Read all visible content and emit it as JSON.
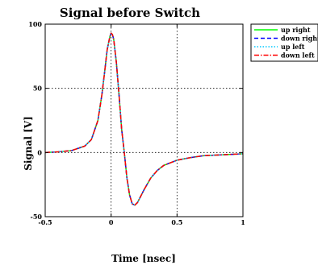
{
  "chart_data": {
    "type": "line",
    "title": "Signal before Switch",
    "xlabel": "Time [nsec]",
    "ylabel": "Signal [V]",
    "xlim": [
      -0.5,
      1
    ],
    "ylim": [
      -50,
      100
    ],
    "xticks": [
      -0.5,
      0,
      0.5,
      1
    ],
    "xtick_labels": [
      "-0.5",
      "0",
      "0.5",
      "1"
    ],
    "yticks": [
      -50,
      0,
      50,
      100
    ],
    "ytick_labels": [
      "-50",
      "0",
      "50",
      "100"
    ],
    "grid": true,
    "legend_position": "outside-top-right",
    "x": [
      -0.5,
      -0.4,
      -0.3,
      -0.2,
      -0.15,
      -0.1,
      -0.07,
      -0.05,
      -0.03,
      -0.01,
      0.0,
      0.01,
      0.02,
      0.04,
      0.06,
      0.08,
      0.1,
      0.12,
      0.14,
      0.16,
      0.18,
      0.2,
      0.22,
      0.25,
      0.3,
      0.35,
      0.4,
      0.5,
      0.6,
      0.7,
      0.8,
      0.9,
      1.0
    ],
    "series": [
      {
        "name": "up right",
        "color": "#00ff00",
        "dash": "solid",
        "values": [
          0,
          0.5,
          1.5,
          5,
          10,
          25,
          45,
          62,
          80,
          90,
          93,
          92,
          88,
          70,
          45,
          18,
          0,
          -20,
          -33,
          -40,
          -41,
          -39,
          -35,
          -29,
          -20,
          -14,
          -10,
          -6,
          -4,
          -2.5,
          -2,
          -1.5,
          -1
        ]
      },
      {
        "name": "down right",
        "color": "#0000ff",
        "dash": "dashed",
        "values": [
          0,
          0.5,
          1.5,
          5,
          10,
          25,
          45,
          62,
          80,
          90,
          93,
          92,
          88,
          70,
          45,
          18,
          0,
          -20,
          -33,
          -40,
          -41,
          -39,
          -35,
          -29,
          -20,
          -14,
          -10,
          -6,
          -4,
          -2.5,
          -2,
          -1.5,
          -1
        ]
      },
      {
        "name": "up left",
        "color": "#00c8ff",
        "dash": "dotted",
        "values": [
          0,
          0.5,
          1.5,
          5,
          10,
          25,
          45,
          62,
          80,
          90,
          93,
          92,
          88,
          70,
          45,
          18,
          0,
          -20,
          -33,
          -40,
          -41,
          -39,
          -35,
          -29,
          -20,
          -14,
          -10,
          -6,
          -4,
          -2.5,
          -2,
          -1.5,
          -1
        ]
      },
      {
        "name": "down left",
        "color": "#ff0000",
        "dash": "dashdot",
        "values": [
          0,
          0.5,
          1.5,
          5,
          10,
          25,
          45,
          62,
          80,
          90,
          93,
          92,
          88,
          70,
          45,
          18,
          0,
          -20,
          -33,
          -40,
          -41,
          -39,
          -35,
          -29,
          -20,
          -14,
          -10,
          -6,
          -4,
          -2.5,
          -2,
          -1.5,
          -1
        ]
      }
    ]
  }
}
